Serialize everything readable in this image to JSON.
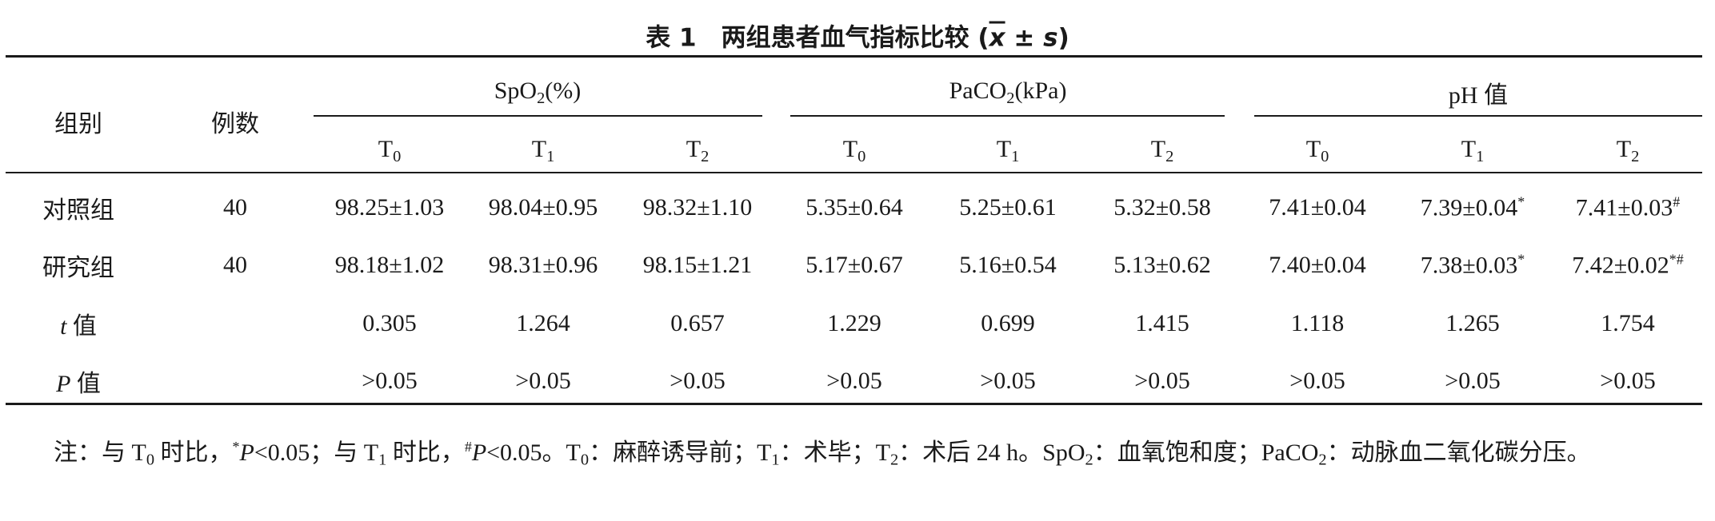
{
  "title": [
    {
      "t": "表 1　两组患者血气指标比较 ("
    },
    {
      "t": "x",
      "style": "mean"
    },
    {
      "t": " ± "
    },
    {
      "t": "s",
      "style": "italic"
    },
    {
      "t": ")"
    }
  ],
  "table": {
    "header": {
      "group": [
        {
          "t": "组别"
        }
      ],
      "count": [
        {
          "t": "例数"
        }
      ],
      "groups": [
        {
          "name": [
            {
              "t": "SpO"
            },
            {
              "t": "2",
              "style": "sub"
            },
            {
              "t": "(%)"
            }
          ],
          "columns": [
            [
              {
                "t": "T"
              },
              {
                "t": "0",
                "style": "sub"
              }
            ],
            [
              {
                "t": "T"
              },
              {
                "t": "1",
                "style": "sub"
              }
            ],
            [
              {
                "t": "T"
              },
              {
                "t": "2",
                "style": "sub"
              }
            ]
          ]
        },
        {
          "name": [
            {
              "t": "PaCO"
            },
            {
              "t": "2",
              "style": "sub"
            },
            {
              "t": "(kPa)"
            }
          ],
          "columns": [
            [
              {
                "t": "T"
              },
              {
                "t": "0",
                "style": "sub"
              }
            ],
            [
              {
                "t": "T"
              },
              {
                "t": "1",
                "style": "sub"
              }
            ],
            [
              {
                "t": "T"
              },
              {
                "t": "2",
                "style": "sub"
              }
            ]
          ]
        },
        {
          "name": [
            {
              "t": "pH 值"
            }
          ],
          "columns": [
            [
              {
                "t": "T"
              },
              {
                "t": "0",
                "style": "sub"
              }
            ],
            [
              {
                "t": "T"
              },
              {
                "t": "1",
                "style": "sub"
              }
            ],
            [
              {
                "t": "T"
              },
              {
                "t": "2",
                "style": "sub"
              }
            ]
          ]
        }
      ]
    },
    "rows": [
      {
        "label": [
          {
            "t": "对照组"
          }
        ],
        "count": [
          {
            "t": "40"
          }
        ],
        "cells": [
          [
            {
              "t": "98.25±1.03"
            }
          ],
          [
            {
              "t": "98.04±0.95"
            }
          ],
          [
            {
              "t": "98.32±1.10"
            }
          ],
          [
            {
              "t": "5.35±0.64"
            }
          ],
          [
            {
              "t": "5.25±0.61"
            }
          ],
          [
            {
              "t": "5.32±0.58"
            }
          ],
          [
            {
              "t": "7.41±0.04"
            }
          ],
          [
            {
              "t": "7.39±0.04"
            },
            {
              "t": "*",
              "style": "sup"
            }
          ],
          [
            {
              "t": "7.41±0.03"
            },
            {
              "t": "#",
              "style": "sup"
            }
          ]
        ]
      },
      {
        "label": [
          {
            "t": "研究组"
          }
        ],
        "count": [
          {
            "t": "40"
          }
        ],
        "cells": [
          [
            {
              "t": "98.18±1.02"
            }
          ],
          [
            {
              "t": "98.31±0.96"
            }
          ],
          [
            {
              "t": "98.15±1.21"
            }
          ],
          [
            {
              "t": "5.17±0.67"
            }
          ],
          [
            {
              "t": "5.16±0.54"
            }
          ],
          [
            {
              "t": "5.13±0.62"
            }
          ],
          [
            {
              "t": "7.40±0.04"
            }
          ],
          [
            {
              "t": "7.38±0.03"
            },
            {
              "t": "*",
              "style": "sup"
            }
          ],
          [
            {
              "t": "7.42±0.02"
            },
            {
              "t": "*#",
              "style": "sup"
            }
          ]
        ]
      },
      {
        "label": [
          {
            "t": "t",
            "style": "italic"
          },
          {
            "t": " 值"
          }
        ],
        "cells": [
          [
            {
              "t": "0.305"
            }
          ],
          [
            {
              "t": "1.264"
            }
          ],
          [
            {
              "t": "0.657"
            }
          ],
          [
            {
              "t": "1.229"
            }
          ],
          [
            {
              "t": "0.699"
            }
          ],
          [
            {
              "t": "1.415"
            }
          ],
          [
            {
              "t": "1.118"
            }
          ],
          [
            {
              "t": "1.265"
            }
          ],
          [
            {
              "t": "1.754"
            }
          ]
        ]
      },
      {
        "label": [
          {
            "t": "P",
            "style": "italic"
          },
          {
            "t": " 值"
          }
        ],
        "cells": [
          [
            {
              "t": ">0.05"
            }
          ],
          [
            {
              "t": ">0.05"
            }
          ],
          [
            {
              "t": ">0.05"
            }
          ],
          [
            {
              "t": ">0.05"
            }
          ],
          [
            {
              "t": ">0.05"
            }
          ],
          [
            {
              "t": ">0.05"
            }
          ],
          [
            {
              "t": ">0.05"
            }
          ],
          [
            {
              "t": ">0.05"
            }
          ],
          [
            {
              "t": ">0.05"
            }
          ]
        ]
      }
    ]
  },
  "note": [
    {
      "t": "注：与 T"
    },
    {
      "t": "0",
      "style": "sub"
    },
    {
      "t": " 时比，"
    },
    {
      "t": "*",
      "style": "sup"
    },
    {
      "t": "P",
      "style": "italic"
    },
    {
      "t": "<0.05；与 T"
    },
    {
      "t": "1",
      "style": "sub"
    },
    {
      "t": " 时比，"
    },
    {
      "t": "#",
      "style": "sup"
    },
    {
      "t": "P",
      "style": "italic"
    },
    {
      "t": "<0.05。T"
    },
    {
      "t": "0",
      "style": "sub"
    },
    {
      "t": "：麻醉诱导前；T"
    },
    {
      "t": "1",
      "style": "sub"
    },
    {
      "t": "：术毕；T"
    },
    {
      "t": "2",
      "style": "sub"
    },
    {
      "t": "：术后 24 h。SpO"
    },
    {
      "t": "2",
      "style": "sub"
    },
    {
      "t": "：血氧饱和度；PaCO"
    },
    {
      "t": "2",
      "style": "sub"
    },
    {
      "t": "：动脉血二氧化碳分压。"
    }
  ]
}
